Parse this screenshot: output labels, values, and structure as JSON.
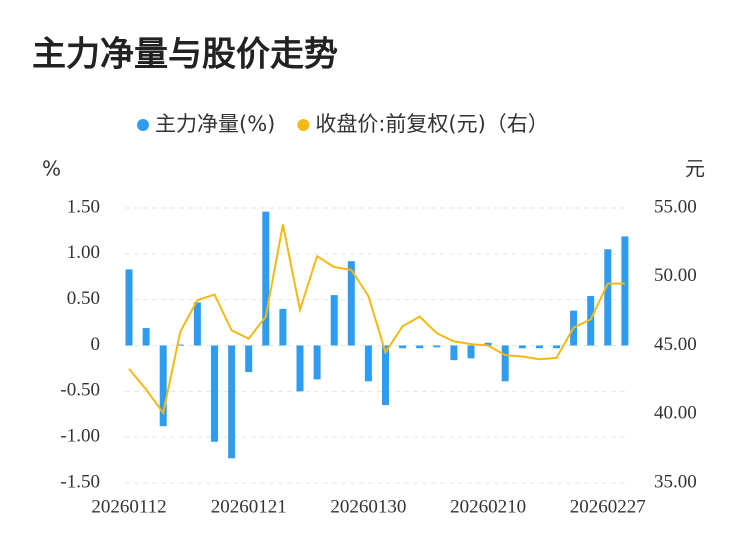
{
  "chart_data": {
    "type": "bar_line",
    "title": "主力净量与股价走势",
    "ylabel": "%",
    "y2label": "元",
    "categories": [
      "20260112",
      null,
      null,
      null,
      null,
      null,
      null,
      "20260121",
      null,
      null,
      null,
      null,
      null,
      null,
      "20260130",
      null,
      null,
      null,
      null,
      null,
      null,
      "20260210",
      null,
      null,
      null,
      null,
      null,
      null,
      "20260227",
      null
    ],
    "series": [
      {
        "name": "主力净量(%)",
        "color": "#2e9cf0",
        "type": "bar",
        "values": [
          0.83,
          0.19,
          -0.88,
          0.01,
          0.47,
          -1.05,
          -1.23,
          -0.29,
          1.46,
          0.4,
          -0.5,
          -0.37,
          0.55,
          0.92,
          -0.39,
          -0.65,
          -0.03,
          -0.03,
          -0.02,
          -0.16,
          -0.14,
          0.03,
          -0.39,
          -0.03,
          -0.03,
          -0.03,
          0.38,
          0.54,
          1.05,
          1.19
        ]
      },
      {
        "name": "收盘价:前复权(元)（右）",
        "color": "#f5b915",
        "type": "line",
        "axis": "y2",
        "values": [
          43.3,
          41.8,
          40.1,
          46.0,
          48.3,
          48.7,
          46.1,
          45.5,
          47.1,
          53.8,
          47.6,
          51.5,
          50.7,
          50.5,
          48.6,
          44.5,
          46.4,
          47.1,
          45.9,
          45.3,
          45.1,
          45.0,
          44.3,
          44.2,
          44.0,
          44.1,
          46.3,
          46.9,
          49.5,
          49.5
        ]
      }
    ],
    "ylim": [
      -1.5,
      1.5
    ],
    "yticks": [
      {
        "value": 1.5,
        "label": "1.50"
      },
      {
        "value": 1,
        "label": "1.00"
      },
      {
        "value": 0.5,
        "label": "0.50"
      },
      0,
      {
        "value": -0.5,
        "label": "-0.50"
      },
      {
        "value": -1,
        "label": "-1.00"
      },
      {
        "value": -1.5,
        "label": "-1.50"
      }
    ],
    "y2lim": [
      35,
      55
    ],
    "y2ticks": [
      {
        "value": 55,
        "label": "55.00"
      },
      {
        "value": 50,
        "label": "50.00"
      },
      {
        "value": 45,
        "label": "45.00"
      },
      {
        "value": 40,
        "label": "40.00"
      },
      {
        "value": 35,
        "label": "35.00"
      }
    ],
    "grid": true
  }
}
